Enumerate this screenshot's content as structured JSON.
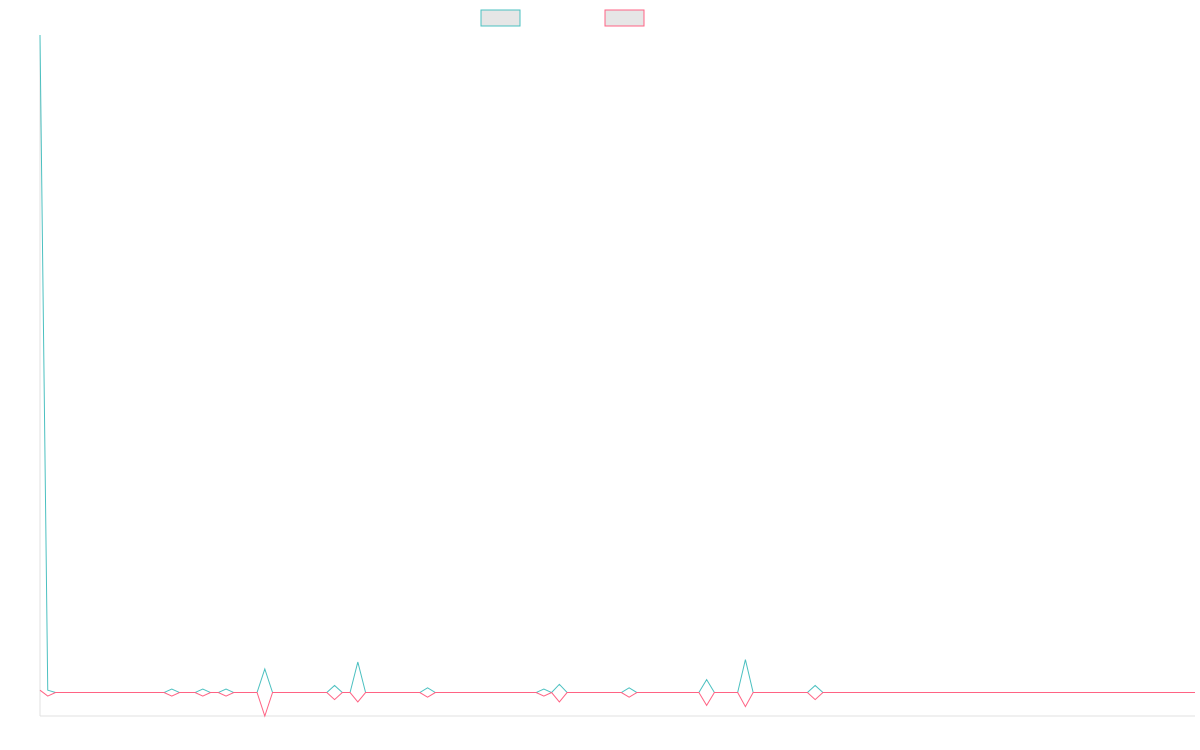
{
  "chart_data": {
    "type": "line",
    "ylim": [
      -1,
      28
    ],
    "series": [
      {
        "color": "#4bc0c0",
        "values": [
          28,
          0.1,
          0,
          0,
          0,
          0,
          0,
          0,
          0,
          0,
          0,
          0,
          0,
          0,
          0,
          0,
          0,
          0.15,
          0,
          0,
          0,
          0.15,
          0,
          0,
          0.15,
          0,
          0,
          0,
          0,
          1,
          0,
          0,
          0,
          0,
          0,
          0,
          0,
          0,
          0.3,
          0,
          0,
          1.3,
          0,
          0,
          0,
          0,
          0,
          0,
          0,
          0,
          0.2,
          0,
          0,
          0,
          0,
          0,
          0,
          0,
          0,
          0,
          0,
          0,
          0,
          0,
          0,
          0.15,
          0,
          0.35,
          0,
          0,
          0,
          0,
          0,
          0,
          0,
          0,
          0.2,
          0,
          0,
          0,
          0,
          0,
          0,
          0,
          0,
          0,
          0.55,
          0,
          0,
          0,
          0,
          1.4,
          0,
          0,
          0,
          0,
          0,
          0,
          0,
          0,
          0.3,
          0,
          0,
          0,
          0,
          0,
          0,
          0,
          0,
          0,
          0,
          0,
          0,
          0,
          0,
          0,
          0,
          0,
          0,
          0,
          0,
          0,
          0,
          0,
          0,
          0,
          0,
          0,
          0,
          0,
          0,
          0,
          0,
          0,
          0,
          0,
          0,
          0,
          0,
          0,
          0,
          0,
          0,
          0,
          0,
          0,
          0,
          0,
          0,
          0
        ]
      },
      {
        "color": "#ff6384",
        "values": [
          0.1,
          -0.15,
          0,
          0,
          0,
          0,
          0,
          0,
          0,
          0,
          0,
          0,
          0,
          0,
          0,
          0,
          0,
          -0.15,
          0,
          0,
          0,
          -0.15,
          0,
          0,
          -0.15,
          0,
          0,
          0,
          0,
          -1,
          0,
          0,
          0,
          0,
          0,
          0,
          0,
          0,
          -0.3,
          0,
          0,
          -0.4,
          0,
          0,
          0,
          0,
          0,
          0,
          0,
          0,
          -0.2,
          0,
          0,
          0,
          0,
          0,
          0,
          0,
          0,
          0,
          0,
          0,
          0,
          0,
          0,
          -0.15,
          0,
          -0.4,
          0,
          0,
          0,
          0,
          0,
          0,
          0,
          0,
          -0.2,
          0,
          0,
          0,
          0,
          0,
          0,
          0,
          0,
          0,
          -0.55,
          0,
          0,
          0,
          0,
          -0.6,
          0,
          0,
          0,
          0,
          0,
          0,
          0,
          0,
          -0.3,
          0,
          0,
          0,
          0,
          0,
          0,
          0,
          0,
          0,
          0,
          0,
          0,
          0,
          0,
          0,
          0,
          0,
          0,
          0,
          0,
          0,
          0,
          0,
          0,
          0,
          0,
          0,
          0,
          0,
          0,
          0,
          0,
          0,
          0,
          0,
          0,
          0,
          0,
          0,
          0,
          0,
          0,
          0,
          0,
          0,
          0,
          0,
          0,
          0
        ]
      }
    ]
  }
}
